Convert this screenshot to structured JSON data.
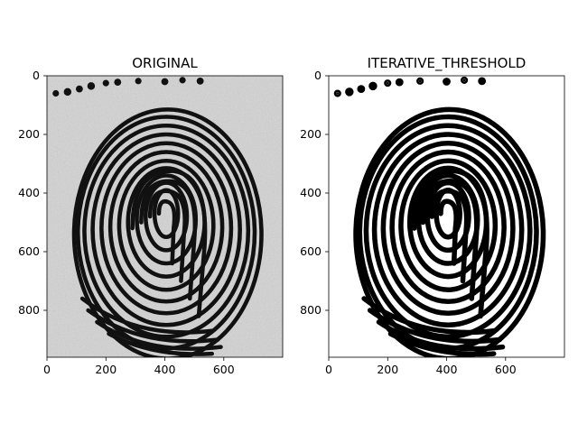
{
  "figure": {
    "panels": [
      {
        "title": "ORIGINAL",
        "xticks": [
          "0",
          "200",
          "400",
          "600"
        ],
        "yticks": [
          "0",
          "200",
          "400",
          "600",
          "800"
        ]
      },
      {
        "title": "ITERATIVE_THRESHOLD",
        "xticks": [
          "0",
          "200",
          "400",
          "600"
        ],
        "yticks": [
          "0",
          "200",
          "400",
          "600",
          "800"
        ]
      }
    ],
    "image_extent": {
      "width": 800,
      "height": 960
    },
    "colors": {
      "original_background": "#d4d4d4",
      "ridge": "#111111",
      "threshold_background": "#ffffff",
      "threshold_ridge": "#000000"
    }
  }
}
